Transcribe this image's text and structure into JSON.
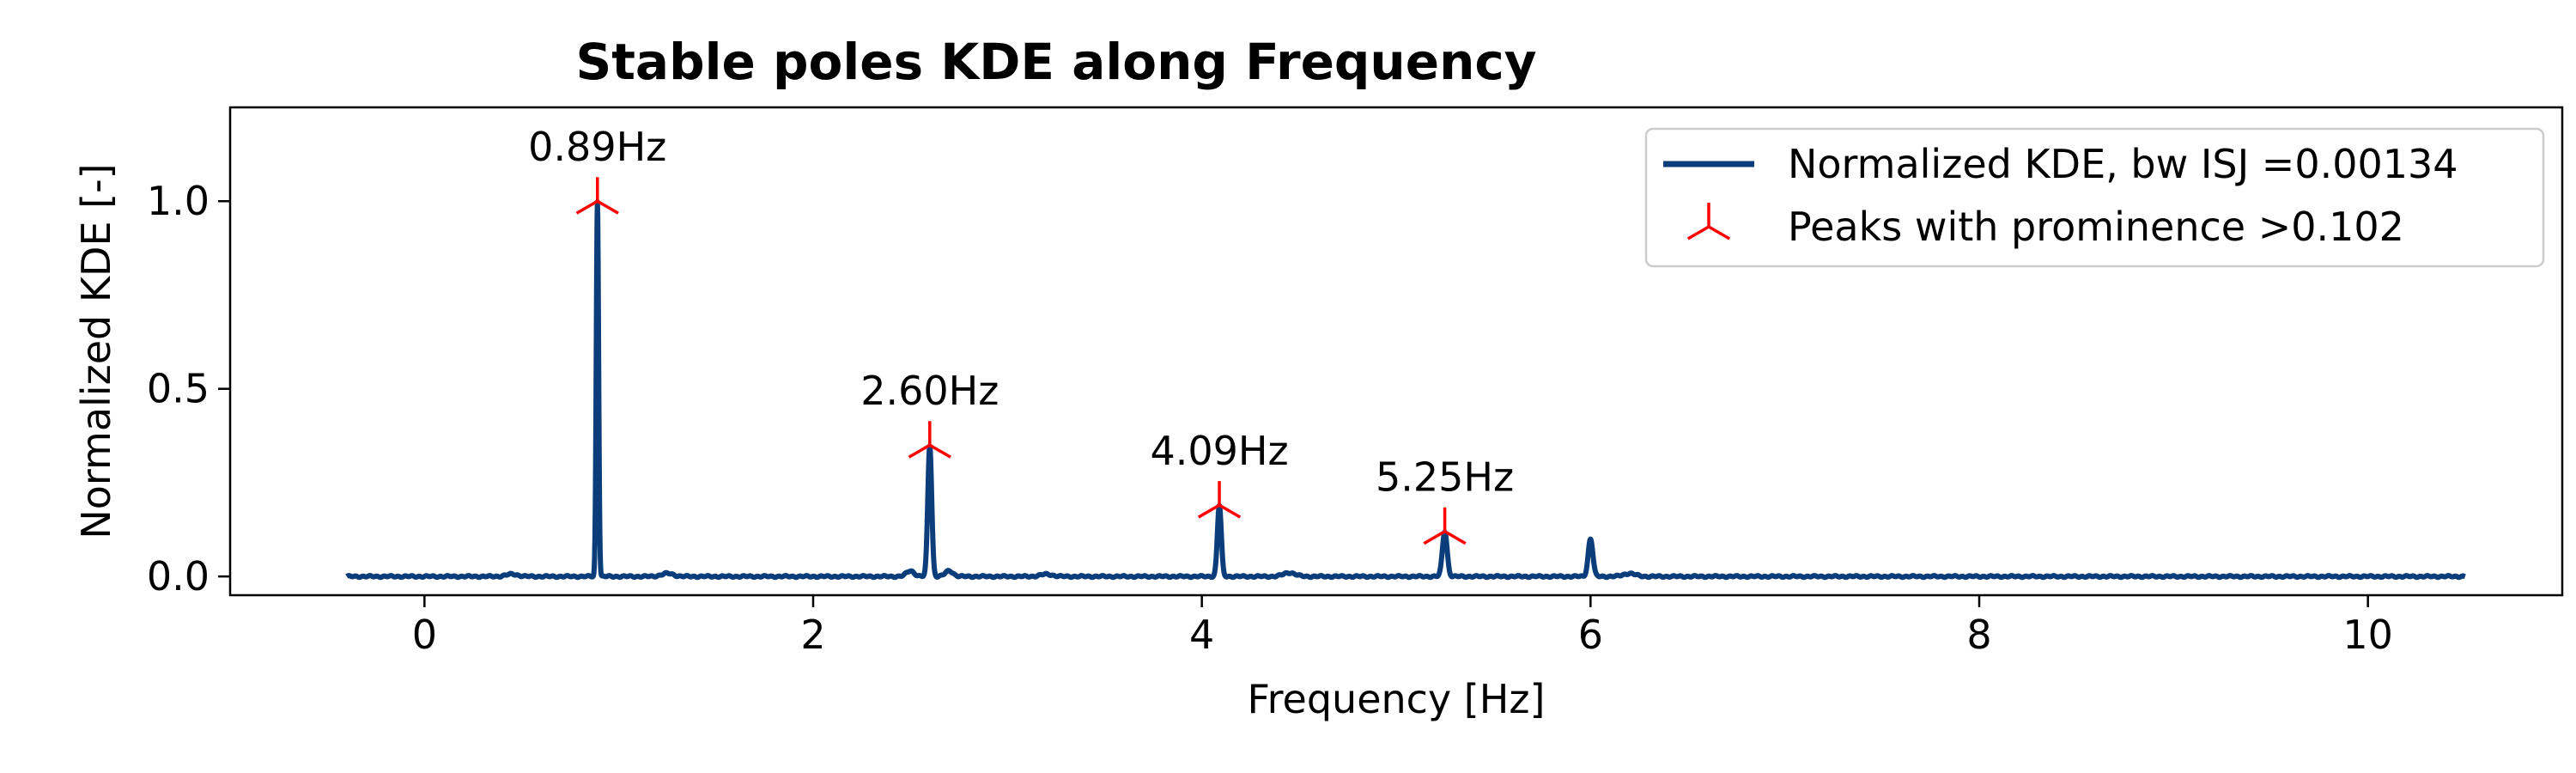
{
  "chart_data": {
    "type": "line",
    "title": "Stable poles KDE along Frequency",
    "xlabel": "Frequency [Hz]",
    "ylabel": "Normalized KDE [-]",
    "xlim": [
      -1.0,
      11.0
    ],
    "ylim": [
      -0.05,
      1.25
    ],
    "xticks": [
      0,
      2,
      4,
      6,
      8,
      10
    ],
    "xtick_labels": [
      "0",
      "2",
      "4",
      "6",
      "8",
      "10"
    ],
    "yticks": [
      0.0,
      0.5,
      1.0
    ],
    "ytick_labels": [
      "0.0",
      "0.5",
      "1.0"
    ],
    "grid": false,
    "legend": {
      "placement": "top-right",
      "entries": [
        {
          "label": "Normalized KDE, bw ISJ =0.00134",
          "marker": "line",
          "color": "#0b3d7a"
        },
        {
          "label": "Peaks with prominence >0.102",
          "marker": "tri_up",
          "color": "#ff0000"
        }
      ]
    },
    "series": [
      {
        "color": "#0b3d7a",
        "x_range": [
          -0.4,
          10.5
        ],
        "baseline": 0.0,
        "components": [
          {
            "center": 0.89,
            "height": 1.0,
            "width": 0.006
          },
          {
            "center": 2.6,
            "height": 0.35,
            "width": 0.01
          },
          {
            "center": 4.09,
            "height": 0.19,
            "width": 0.01
          },
          {
            "center": 5.25,
            "height": 0.12,
            "width": 0.012
          },
          {
            "center": 6.0,
            "height": 0.1,
            "width": 0.012
          },
          {
            "center": 2.5,
            "height": 0.015,
            "width": 0.02
          },
          {
            "center": 2.7,
            "height": 0.015,
            "width": 0.02
          },
          {
            "center": 1.25,
            "height": 0.008,
            "width": 0.03
          },
          {
            "center": 0.45,
            "height": 0.006,
            "width": 0.03
          },
          {
            "center": 4.45,
            "height": 0.01,
            "width": 0.03
          },
          {
            "center": 3.2,
            "height": 0.006,
            "width": 0.03
          },
          {
            "center": 6.2,
            "height": 0.008,
            "width": 0.03
          }
        ]
      }
    ],
    "peaks": [
      {
        "x": 0.89,
        "y": 1.0,
        "label": "0.89Hz"
      },
      {
        "x": 2.6,
        "y": 0.35,
        "label": "2.60Hz"
      },
      {
        "x": 4.09,
        "y": 0.19,
        "label": "4.09Hz"
      },
      {
        "x": 5.25,
        "y": 0.12,
        "label": "5.25Hz"
      }
    ],
    "colors": {
      "line": "#0b3d7a",
      "peak_marker": "#ff0000"
    }
  }
}
